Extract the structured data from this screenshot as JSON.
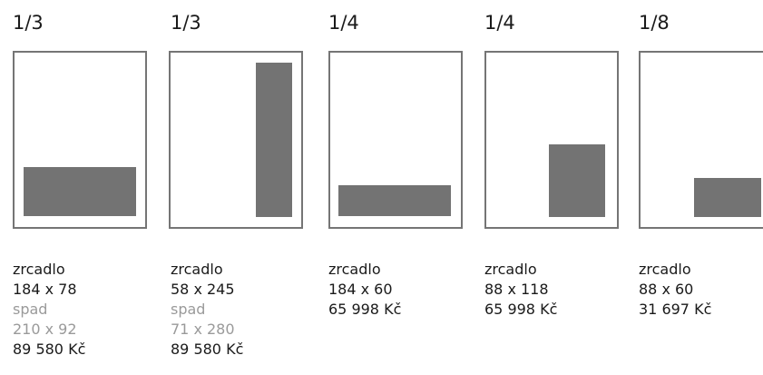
{
  "options": [
    {
      "fraction": "1/3",
      "label": "zrcadlo",
      "size": "184 x 78",
      "bleed_label": "spad",
      "bleed_size": "210 x 92",
      "price": "89 580 Kč"
    },
    {
      "fraction": "1/3",
      "label": "zrcadlo",
      "size": "58 x 245",
      "bleed_label": "spad",
      "bleed_size": "71 x 280",
      "price": "89 580 Kč"
    },
    {
      "fraction": "1/4",
      "label": "zrcadlo",
      "size": "184 x 60",
      "price": "65 998 Kč"
    },
    {
      "fraction": "1/4",
      "label": "zrcadlo",
      "size": "88 x 118",
      "price": "65 998 Kč"
    },
    {
      "fraction": "1/8",
      "label": "zrcadlo",
      "size": "88 x 60",
      "price": "31 697 Kč"
    }
  ],
  "colors": {
    "page_border": "#757575",
    "ad_fill": "#737373",
    "text": "#1a1a1a",
    "muted_text": "#9a9a9a"
  }
}
